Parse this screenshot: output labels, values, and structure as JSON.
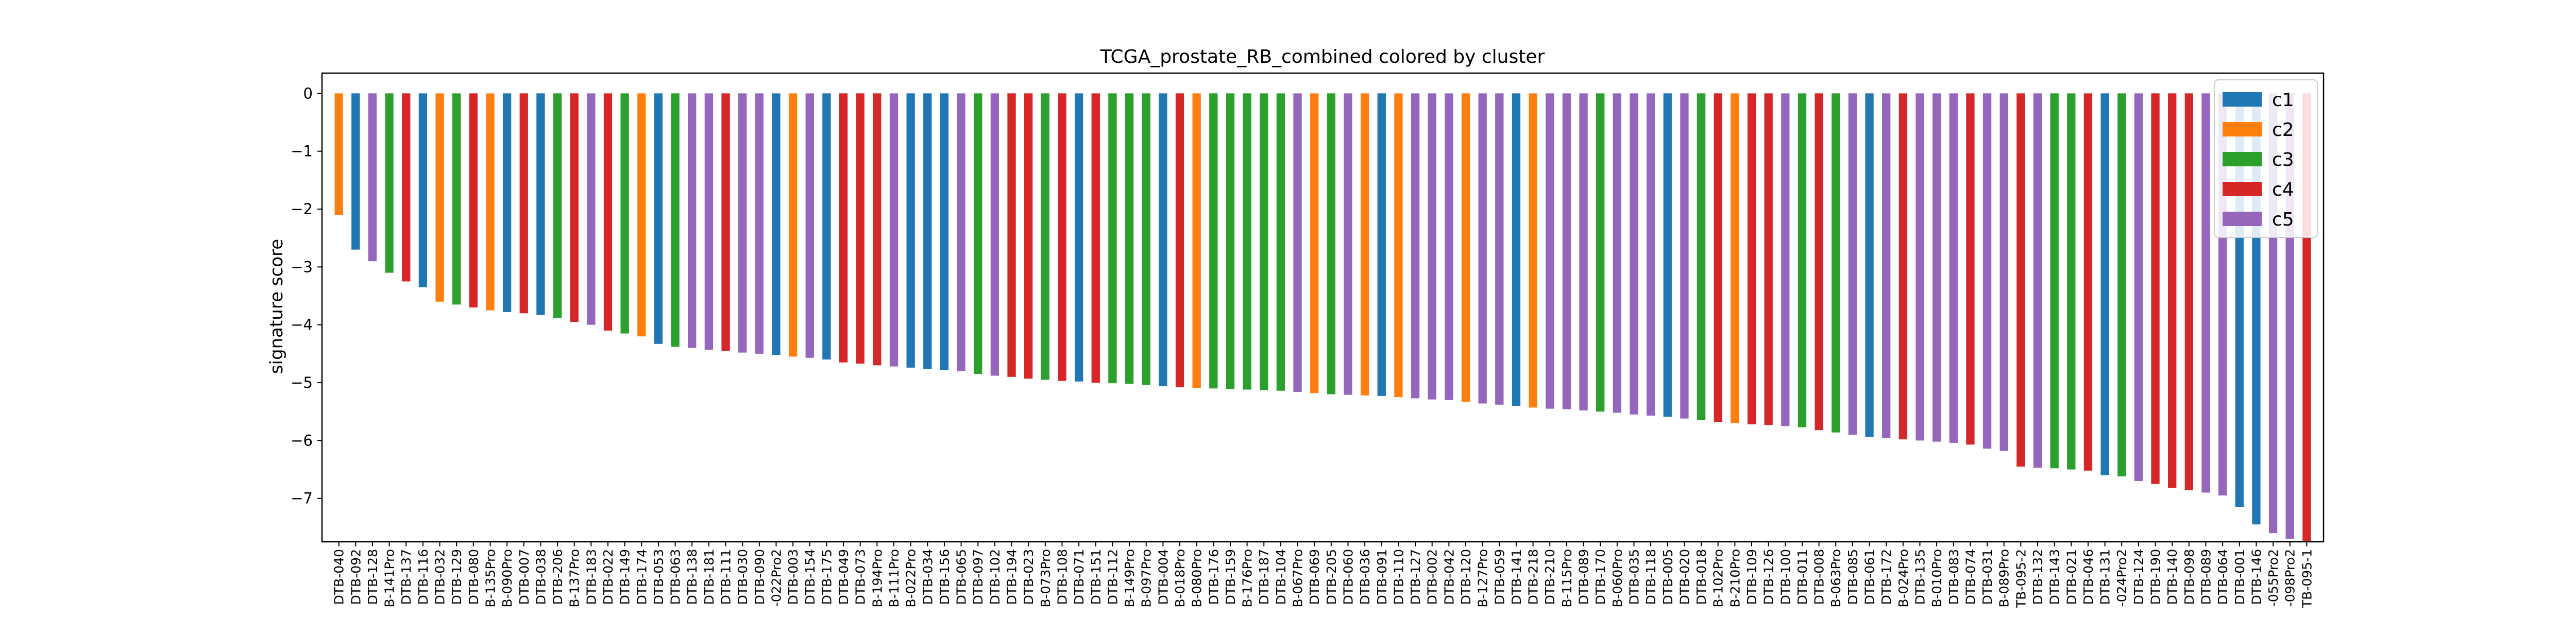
{
  "chart_data": {
    "type": "bar",
    "title": "TCGA_prostate_RB_combined colored by cluster",
    "xlabel": "",
    "ylabel": "signature score",
    "ylim": [
      -7.75,
      0.35
    ],
    "yticks": [
      0,
      -1,
      -2,
      -3,
      -4,
      -5,
      -6,
      -7
    ],
    "grid": false,
    "legend_position": "top-right",
    "legend": [
      {
        "name": "c1",
        "color": "#1f77b4"
      },
      {
        "name": "c2",
        "color": "#ff7f0e"
      },
      {
        "name": "c3",
        "color": "#2ca02c"
      },
      {
        "name": "c4",
        "color": "#d62728"
      },
      {
        "name": "c5",
        "color": "#9467bd"
      }
    ],
    "bars": [
      {
        "label": "DTB-040",
        "value": -2.1,
        "cluster": "c2"
      },
      {
        "label": "DTB-092",
        "value": -2.7,
        "cluster": "c1"
      },
      {
        "label": "DTB-128",
        "value": -2.9,
        "cluster": "c5"
      },
      {
        "label": "B-141Pro",
        "value": -3.1,
        "cluster": "c3"
      },
      {
        "label": "DTB-137",
        "value": -3.25,
        "cluster": "c4"
      },
      {
        "label": "DTB-116",
        "value": -3.35,
        "cluster": "c1"
      },
      {
        "label": "DTB-032",
        "value": -3.6,
        "cluster": "c2"
      },
      {
        "label": "DTB-129",
        "value": -3.65,
        "cluster": "c3"
      },
      {
        "label": "DTB-080",
        "value": -3.7,
        "cluster": "c4"
      },
      {
        "label": "B-135Pro",
        "value": -3.75,
        "cluster": "c2"
      },
      {
        "label": "B-090Pro",
        "value": -3.78,
        "cluster": "c1"
      },
      {
        "label": "DTB-007",
        "value": -3.8,
        "cluster": "c4"
      },
      {
        "label": "DTB-038",
        "value": -3.83,
        "cluster": "c1"
      },
      {
        "label": "DTB-206",
        "value": -3.88,
        "cluster": "c3"
      },
      {
        "label": "B-137Pro",
        "value": -3.95,
        "cluster": "c4"
      },
      {
        "label": "DTB-183",
        "value": -4.0,
        "cluster": "c5"
      },
      {
        "label": "DTB-022",
        "value": -4.1,
        "cluster": "c4"
      },
      {
        "label": "DTB-149",
        "value": -4.15,
        "cluster": "c3"
      },
      {
        "label": "DTB-174",
        "value": -4.2,
        "cluster": "c2"
      },
      {
        "label": "DTB-053",
        "value": -4.33,
        "cluster": "c1"
      },
      {
        "label": "DTB-063",
        "value": -4.38,
        "cluster": "c3"
      },
      {
        "label": "DTB-138",
        "value": -4.4,
        "cluster": "c5"
      },
      {
        "label": "DTB-181",
        "value": -4.43,
        "cluster": "c5"
      },
      {
        "label": "DTB-111",
        "value": -4.45,
        "cluster": "c4"
      },
      {
        "label": "DTB-030",
        "value": -4.48,
        "cluster": "c5"
      },
      {
        "label": "DTB-090",
        "value": -4.5,
        "cluster": "c5"
      },
      {
        "label": "-022Pro2",
        "value": -4.52,
        "cluster": "c1"
      },
      {
        "label": "DTB-003",
        "value": -4.55,
        "cluster": "c2"
      },
      {
        "label": "DTB-154",
        "value": -4.57,
        "cluster": "c5"
      },
      {
        "label": "DTB-175",
        "value": -4.6,
        "cluster": "c1"
      },
      {
        "label": "DTB-049",
        "value": -4.65,
        "cluster": "c4"
      },
      {
        "label": "DTB-073",
        "value": -4.67,
        "cluster": "c4"
      },
      {
        "label": "B-194Pro",
        "value": -4.7,
        "cluster": "c4"
      },
      {
        "label": "B-111Pro",
        "value": -4.72,
        "cluster": "c5"
      },
      {
        "label": "B-022Pro",
        "value": -4.74,
        "cluster": "c1"
      },
      {
        "label": "DTB-034",
        "value": -4.76,
        "cluster": "c1"
      },
      {
        "label": "DTB-156",
        "value": -4.78,
        "cluster": "c1"
      },
      {
        "label": "DTB-065",
        "value": -4.8,
        "cluster": "c5"
      },
      {
        "label": "DTB-097",
        "value": -4.85,
        "cluster": "c3"
      },
      {
        "label": "DTB-102",
        "value": -4.88,
        "cluster": "c5"
      },
      {
        "label": "DTB-194",
        "value": -4.9,
        "cluster": "c4"
      },
      {
        "label": "DTB-023",
        "value": -4.93,
        "cluster": "c4"
      },
      {
        "label": "B-073Pro",
        "value": -4.95,
        "cluster": "c3"
      },
      {
        "label": "DTB-108",
        "value": -4.97,
        "cluster": "c4"
      },
      {
        "label": "DTB-071",
        "value": -4.98,
        "cluster": "c1"
      },
      {
        "label": "DTB-151",
        "value": -5.0,
        "cluster": "c4"
      },
      {
        "label": "DTB-112",
        "value": -5.01,
        "cluster": "c3"
      },
      {
        "label": "B-149Pro",
        "value": -5.02,
        "cluster": "c3"
      },
      {
        "label": "B-097Pro",
        "value": -5.04,
        "cluster": "c3"
      },
      {
        "label": "DTB-004",
        "value": -5.06,
        "cluster": "c1"
      },
      {
        "label": "B-018Pro",
        "value": -5.08,
        "cluster": "c4"
      },
      {
        "label": "B-080Pro",
        "value": -5.09,
        "cluster": "c2"
      },
      {
        "label": "DTB-176",
        "value": -5.1,
        "cluster": "c3"
      },
      {
        "label": "DTB-159",
        "value": -5.11,
        "cluster": "c3"
      },
      {
        "label": "B-176Pro",
        "value": -5.12,
        "cluster": "c3"
      },
      {
        "label": "DTB-187",
        "value": -5.13,
        "cluster": "c3"
      },
      {
        "label": "DTB-104",
        "value": -5.14,
        "cluster": "c3"
      },
      {
        "label": "B-067Pro",
        "value": -5.16,
        "cluster": "c5"
      },
      {
        "label": "DTB-069",
        "value": -5.18,
        "cluster": "c2"
      },
      {
        "label": "DTB-205",
        "value": -5.2,
        "cluster": "c3"
      },
      {
        "label": "DTB-060",
        "value": -5.21,
        "cluster": "c5"
      },
      {
        "label": "DTB-036",
        "value": -5.22,
        "cluster": "c2"
      },
      {
        "label": "DTB-091",
        "value": -5.23,
        "cluster": "c1"
      },
      {
        "label": "DTB-110",
        "value": -5.25,
        "cluster": "c2"
      },
      {
        "label": "DTB-127",
        "value": -5.27,
        "cluster": "c5"
      },
      {
        "label": "DTB-002",
        "value": -5.29,
        "cluster": "c5"
      },
      {
        "label": "DTB-042",
        "value": -5.3,
        "cluster": "c5"
      },
      {
        "label": "DTB-120",
        "value": -5.33,
        "cluster": "c2"
      },
      {
        "label": "B-127Pro",
        "value": -5.36,
        "cluster": "c5"
      },
      {
        "label": "DTB-059",
        "value": -5.38,
        "cluster": "c5"
      },
      {
        "label": "DTB-141",
        "value": -5.4,
        "cluster": "c1"
      },
      {
        "label": "DTB-218",
        "value": -5.43,
        "cluster": "c2"
      },
      {
        "label": "DTB-210",
        "value": -5.45,
        "cluster": "c5"
      },
      {
        "label": "B-115Pro",
        "value": -5.46,
        "cluster": "c5"
      },
      {
        "label": "DTB-089",
        "value": -5.48,
        "cluster": "c5"
      },
      {
        "label": "DTB-170",
        "value": -5.5,
        "cluster": "c3"
      },
      {
        "label": "B-060Pro",
        "value": -5.52,
        "cluster": "c5"
      },
      {
        "label": "DTB-035",
        "value": -5.55,
        "cluster": "c5"
      },
      {
        "label": "DTB-118",
        "value": -5.57,
        "cluster": "c5"
      },
      {
        "label": "DTB-005",
        "value": -5.59,
        "cluster": "c1"
      },
      {
        "label": "DTB-020",
        "value": -5.62,
        "cluster": "c5"
      },
      {
        "label": "DTB-018",
        "value": -5.65,
        "cluster": "c3"
      },
      {
        "label": "B-102Pro",
        "value": -5.68,
        "cluster": "c4"
      },
      {
        "label": "B-210Pro",
        "value": -5.7,
        "cluster": "c2"
      },
      {
        "label": "DTB-109",
        "value": -5.72,
        "cluster": "c4"
      },
      {
        "label": "DTB-126",
        "value": -5.73,
        "cluster": "c4"
      },
      {
        "label": "DTB-100",
        "value": -5.75,
        "cluster": "c5"
      },
      {
        "label": "DTB-011",
        "value": -5.77,
        "cluster": "c3"
      },
      {
        "label": "DTB-008",
        "value": -5.82,
        "cluster": "c4"
      },
      {
        "label": "B-063Pro",
        "value": -5.86,
        "cluster": "c3"
      },
      {
        "label": "DTB-085",
        "value": -5.9,
        "cluster": "c5"
      },
      {
        "label": "DTB-061",
        "value": -5.94,
        "cluster": "c1"
      },
      {
        "label": "DTB-172",
        "value": -5.96,
        "cluster": "c5"
      },
      {
        "label": "B-024Pro",
        "value": -5.98,
        "cluster": "c4"
      },
      {
        "label": "DTB-135",
        "value": -6.0,
        "cluster": "c5"
      },
      {
        "label": "B-010Pro",
        "value": -6.02,
        "cluster": "c5"
      },
      {
        "label": "DTB-083",
        "value": -6.04,
        "cluster": "c5"
      },
      {
        "label": "DTB-074",
        "value": -6.07,
        "cluster": "c4"
      },
      {
        "label": "DTB-031",
        "value": -6.14,
        "cluster": "c5"
      },
      {
        "label": "B-089Pro",
        "value": -6.18,
        "cluster": "c5"
      },
      {
        "label": "TB-095-2",
        "value": -6.45,
        "cluster": "c4"
      },
      {
        "label": "DTB-132",
        "value": -6.47,
        "cluster": "c5"
      },
      {
        "label": "DTB-143",
        "value": -6.48,
        "cluster": "c3"
      },
      {
        "label": "DTB-021",
        "value": -6.5,
        "cluster": "c3"
      },
      {
        "label": "DTB-046",
        "value": -6.52,
        "cluster": "c4"
      },
      {
        "label": "DTB-131",
        "value": -6.6,
        "cluster": "c1"
      },
      {
        "label": "-024Pro2",
        "value": -6.62,
        "cluster": "c3"
      },
      {
        "label": "DTB-124",
        "value": -6.7,
        "cluster": "c5"
      },
      {
        "label": "DTB-190",
        "value": -6.75,
        "cluster": "c4"
      },
      {
        "label": "DTB-140",
        "value": -6.82,
        "cluster": "c4"
      },
      {
        "label": "DTB-098",
        "value": -6.86,
        "cluster": "c4"
      },
      {
        "label": "DTB-089",
        "value": -6.9,
        "cluster": "c5"
      },
      {
        "label": "DTB-064",
        "value": -6.95,
        "cluster": "c5"
      },
      {
        "label": "DTB-001",
        "value": -7.15,
        "cluster": "c1"
      },
      {
        "label": "DTB-146",
        "value": -7.45,
        "cluster": "c1"
      },
      {
        "label": "-055Pro2",
        "value": -7.6,
        "cluster": "c5"
      },
      {
        "label": "-098Pro2",
        "value": -7.7,
        "cluster": "c5"
      },
      {
        "label": "TB-095-1",
        "value": -7.75,
        "cluster": "c4"
      }
    ]
  }
}
